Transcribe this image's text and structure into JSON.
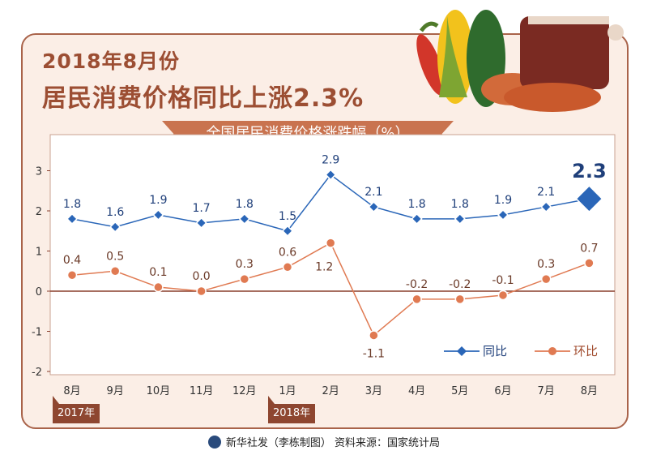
{
  "header": {
    "title_line1": "2018年8月份",
    "title_line2": "居民消费价格同比上涨2.3%"
  },
  "chart_data": {
    "type": "line",
    "title": "全国居民消费价格涨跌幅（%）",
    "categories": [
      "8月",
      "9月",
      "10月",
      "11月",
      "12月",
      "1月",
      "2月",
      "3月",
      "4月",
      "5月",
      "6月",
      "7月",
      "8月"
    ],
    "year_labels": [
      {
        "label": "2017年",
        "start_index": 0
      },
      {
        "label": "2018年",
        "start_index": 5
      }
    ],
    "yticks": [
      "3",
      "2",
      "1",
      "0",
      "-1",
      "-2"
    ],
    "ylim": [
      -2,
      3.5
    ],
    "series": [
      {
        "name": "同比",
        "color": "#2a66b8",
        "marker": "diamond",
        "values": [
          1.8,
          1.6,
          1.9,
          1.7,
          1.8,
          1.5,
          2.9,
          2.1,
          1.8,
          1.8,
          1.9,
          2.1,
          2.3
        ],
        "labels": [
          "1.8",
          "1.6",
          "1.9",
          "1.7",
          "1.8",
          "1.5",
          "2.9",
          "2.1",
          "1.8",
          "1.8",
          "1.9",
          "2.1",
          "2.3"
        ]
      },
      {
        "name": "环比",
        "color": "#e07a52",
        "marker": "circle",
        "values": [
          0.4,
          0.5,
          0.1,
          0.0,
          0.3,
          0.6,
          1.2,
          -1.1,
          -0.2,
          -0.2,
          -0.1,
          0.3,
          0.7
        ],
        "labels": [
          "0.4",
          "0.5",
          "0.1",
          "0.0",
          "0.3",
          "0.6",
          "1.2",
          "-1.1",
          "-0.2",
          "-0.2",
          "-0.1",
          "0.3",
          "0.7"
        ]
      }
    ],
    "legend_position": "bottom-right",
    "grid": false
  },
  "footer": {
    "source": "新华社发（李栋制图） 资料来源：国家统计局"
  }
}
